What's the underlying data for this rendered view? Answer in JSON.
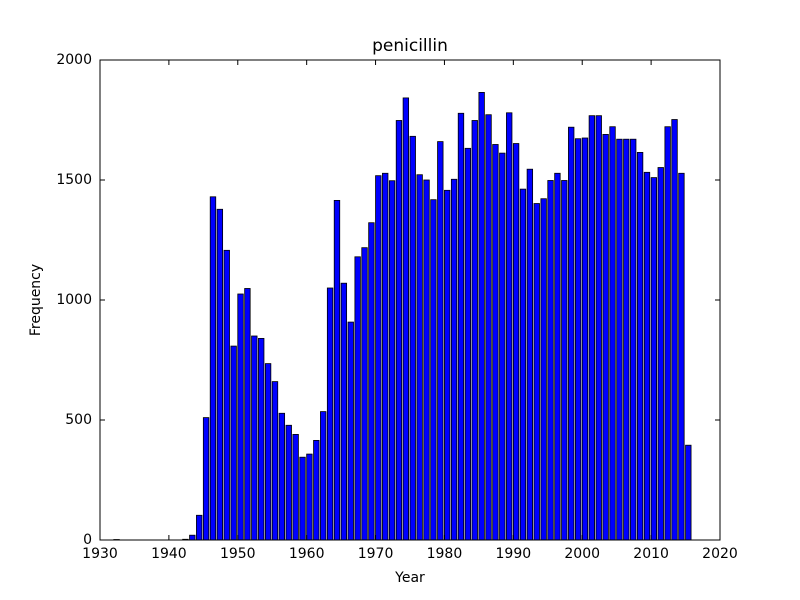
{
  "chart_data": {
    "type": "bar",
    "title": "penicillin",
    "x_label": "Year",
    "y_label": "Frequency",
    "x": [
      1932,
      1933,
      1934,
      1935,
      1936,
      1937,
      1938,
      1939,
      1940,
      1941,
      1942,
      1943,
      1944,
      1945,
      1946,
      1947,
      1948,
      1949,
      1950,
      1951,
      1952,
      1953,
      1954,
      1955,
      1956,
      1957,
      1958,
      1959,
      1960,
      1961,
      1962,
      1963,
      1964,
      1965,
      1966,
      1967,
      1968,
      1969,
      1970,
      1971,
      1972,
      1973,
      1974,
      1975,
      1976,
      1977,
      1978,
      1979,
      1980,
      1981,
      1982,
      1983,
      1984,
      1985,
      1986,
      1987,
      1988,
      1989,
      1990,
      1991,
      1992,
      1993,
      1994,
      1995,
      1996,
      1997,
      1998,
      1999,
      2000,
      2001,
      2002,
      2003,
      2004,
      2005,
      2006,
      2007,
      2008,
      2009,
      2010,
      2011,
      2012,
      2013,
      2014,
      2015
    ],
    "values": [
      2,
      0,
      0,
      0,
      0,
      0,
      0,
      0,
      0,
      0,
      3,
      20,
      103,
      510,
      1430,
      1378,
      1207,
      808,
      1025,
      1048,
      850,
      840,
      735,
      660,
      528,
      478,
      440,
      345,
      358,
      415,
      535,
      1050,
      1415,
      1070,
      908,
      1180,
      1218,
      1322,
      1518,
      1528,
      1497,
      1748,
      1842,
      1682,
      1522,
      1500,
      1418,
      1660,
      1457,
      1503,
      1778,
      1632,
      1748,
      1865,
      1772,
      1648,
      1612,
      1780,
      1652,
      1462,
      1545,
      1402,
      1422,
      1498,
      1528,
      1498,
      1720,
      1672,
      1675,
      1768,
      1768,
      1690,
      1722,
      1670,
      1670,
      1670,
      1615,
      1532,
      1510,
      1552,
      1722,
      1752,
      1528,
      395
    ],
    "color": "#0000ff",
    "xlim": [
      1930,
      2020
    ],
    "xticks": [
      1930,
      1940,
      1950,
      1960,
      1970,
      1980,
      1990,
      2000,
      2010,
      2020
    ],
    "ylim": [
      0,
      2000
    ],
    "yticks": [
      0,
      500,
      1000,
      1500,
      2000
    ]
  }
}
